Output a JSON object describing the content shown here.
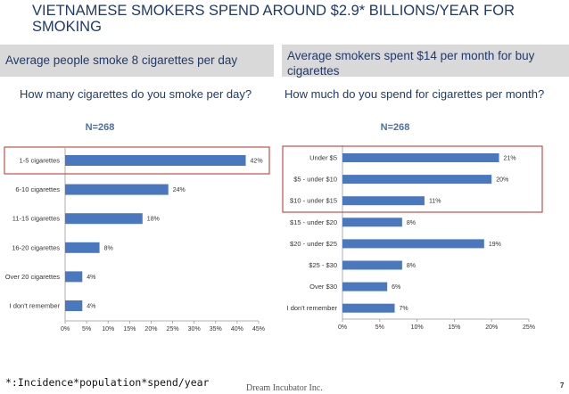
{
  "title": "VIETNAMESE SMOKERS SPEND AROUND $2.9* BILLIONS/YEAR FOR SMOKING",
  "left_band": "Average people smoke 8 cigarettes per day",
  "right_band": "Average smokers spent $14 per month for buy cigarettes",
  "footnote": "*:Incidence*population*spend/year",
  "company": "Dream Incubator Inc.",
  "page_number": "7",
  "colors": {
    "bar": "#4a78bf",
    "highlight": "#c0504d",
    "title": "#1f3a6b",
    "band": "#d9d9d9"
  },
  "chart_data": [
    {
      "type": "bar",
      "orientation": "horizontal",
      "question": "How many cigarettes do you smoke per day?",
      "n_label": "N=268",
      "categories": [
        "1-5 cigarettes",
        "6-10 cigarettes",
        "11-15 cigarettes",
        "16-20 cigarettes",
        "Over 20 cigarettes",
        "I don't remember"
      ],
      "values": [
        42,
        24,
        18,
        8,
        4,
        4
      ],
      "value_labels": [
        "42%",
        "24%",
        "18%",
        "8%",
        "4%",
        "4%"
      ],
      "xlim": [
        0,
        45
      ],
      "xticks": [
        "0%",
        "5%",
        "10%",
        "15%",
        "20%",
        "25%",
        "30%",
        "35%",
        "40%",
        "45%"
      ],
      "highlighted_categories": [
        0
      ]
    },
    {
      "type": "bar",
      "orientation": "horizontal",
      "question": "How much do you spend for cigarettes per month?",
      "n_label": "N=268",
      "categories": [
        "Under $5",
        "$5 - under $10",
        "$10 - under $15",
        "$15 - under $20",
        "$20 - under $25",
        "$25 - $30",
        "Over $30",
        "I don't remember"
      ],
      "values": [
        21,
        20,
        11,
        8,
        19,
        8,
        6,
        7
      ],
      "value_labels": [
        "21%",
        "20%",
        "11%",
        "8%",
        "19%",
        "8%",
        "6%",
        "7%"
      ],
      "xlim": [
        0,
        25
      ],
      "xticks": [
        "0%",
        "5%",
        "10%",
        "15%",
        "20%",
        "25%"
      ],
      "highlighted_categories": [
        0,
        1,
        2
      ]
    }
  ]
}
